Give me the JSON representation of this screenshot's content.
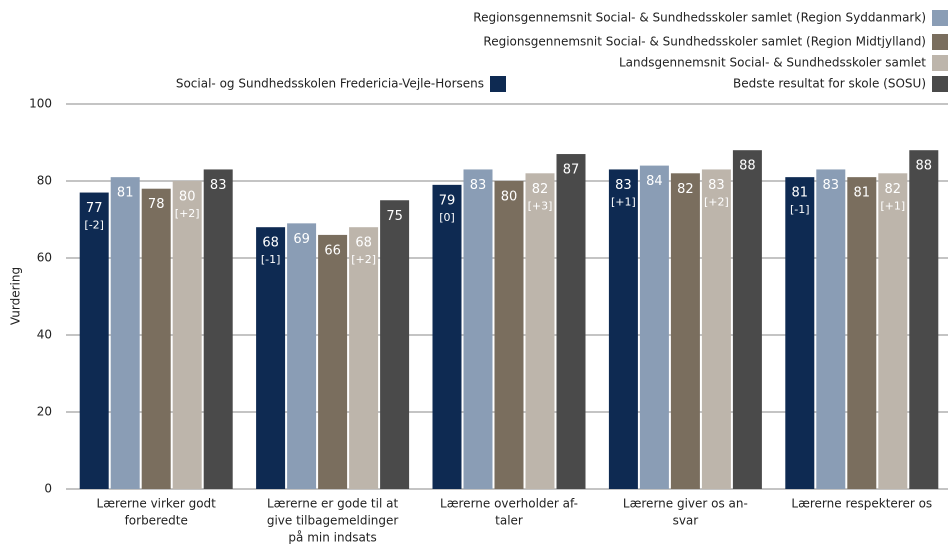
{
  "chart_data": {
    "type": "bar",
    "y_label": "Vurdering",
    "categories": [
      [
        "Lærerne virker godt",
        "forberedte"
      ],
      [
        "Lærerne er gode til at",
        "give tilbagemeldinger",
        "på min indsats"
      ],
      [
        "Lærerne overholder af-",
        "taler"
      ],
      [
        "Lærerne giver os an-",
        "svar"
      ],
      [
        "Lærerne respekterer os"
      ]
    ],
    "series": [
      {
        "name": "Social- og Sundhedsskolen Fredericia-Vejle-Horsens",
        "color": "#0e2a52",
        "values": [
          77,
          68,
          79,
          83,
          81
        ],
        "diffs": [
          "[-2]",
          "[-1]",
          "[0]",
          "[+1]",
          "[-1]"
        ]
      },
      {
        "name": "Regionsgennemsnit Social- & Sundhedsskoler samlet (Region Syddanmark)",
        "color": "#8a9db5",
        "values": [
          81,
          69,
          83,
          84,
          83
        ]
      },
      {
        "name": "Regionsgennemsnit Social- & Sundhedsskoler samlet (Region Midtjylland)",
        "color": "#7a6e5e",
        "values": [
          78,
          66,
          80,
          82,
          81
        ]
      },
      {
        "name": "Landsgennemsnit Social- & Sundhedsskoler samlet",
        "color": "#bdb5ab",
        "values": [
          80,
          68,
          82,
          83,
          82
        ],
        "diffs": [
          "[+2]",
          "[+2]",
          "[+3]",
          "[+2]",
          "[+1]"
        ]
      },
      {
        "name": "Bedste resultat for skole (SOSU)",
        "color": "#4a4a4a",
        "values": [
          83,
          75,
          87,
          88,
          88
        ]
      }
    ],
    "ylim": [
      0,
      100
    ],
    "yticks": [
      0,
      20,
      40,
      60,
      80,
      100
    ],
    "grid": true
  }
}
